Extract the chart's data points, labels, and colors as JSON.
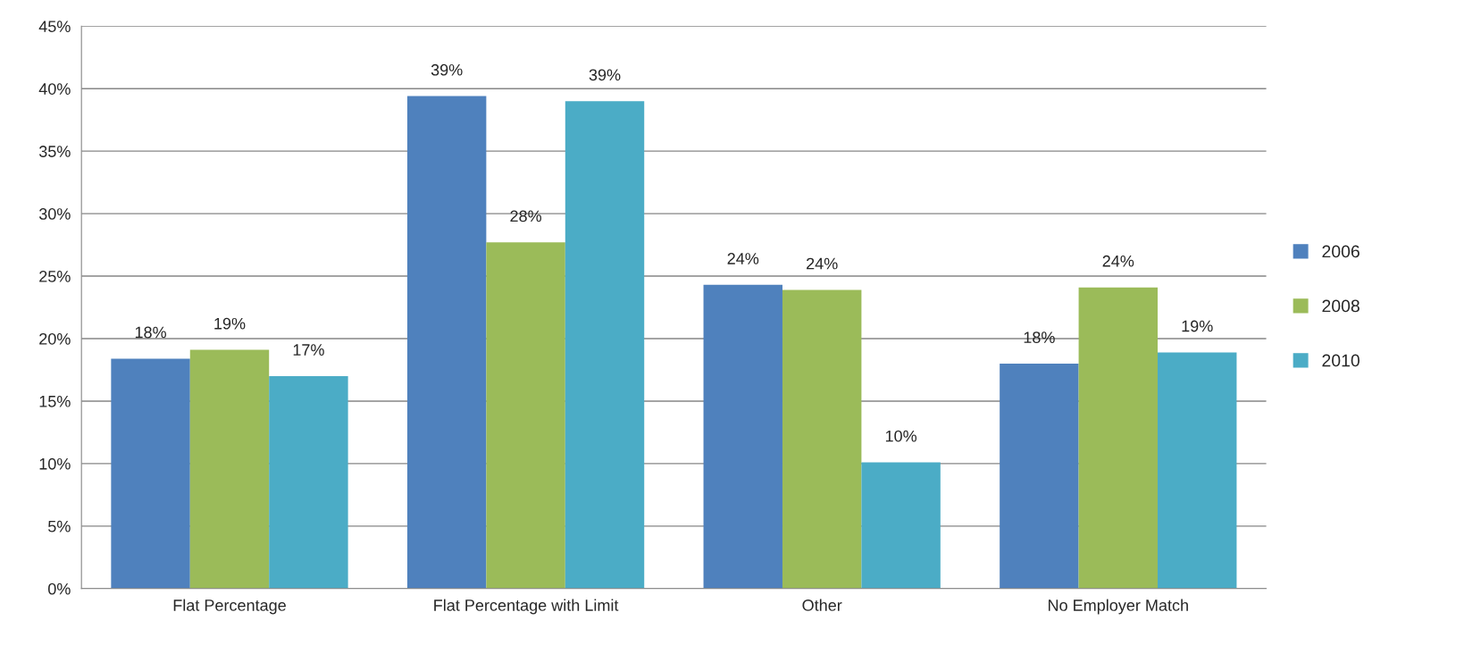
{
  "chart_data": {
    "type": "bar",
    "categories": [
      "Flat Percentage",
      "Flat Percentage with Limit",
      "Other",
      "No Employer Match"
    ],
    "series": [
      {
        "name": "2006",
        "color": "#4f81bd",
        "values": [
          18.4,
          39.4,
          24.3,
          18.0
        ],
        "value_labels": [
          "18%",
          "39%",
          "24%",
          "18%"
        ]
      },
      {
        "name": "2008",
        "color": "#9bbb59",
        "values": [
          19.1,
          27.7,
          23.9,
          24.1
        ],
        "value_labels": [
          "19%",
          "28%",
          "24%",
          "24%"
        ]
      },
      {
        "name": "2010",
        "color": "#4bacc6",
        "values": [
          17.0,
          39.0,
          10.1,
          18.9
        ],
        "value_labels": [
          "17%",
          "39%",
          "10%",
          "19%"
        ]
      }
    ],
    "ylim": [
      0,
      45
    ],
    "yticks": [
      {
        "value": 0,
        "label": "0%"
      },
      {
        "value": 5,
        "label": "5%"
      },
      {
        "value": 10,
        "label": "10%"
      },
      {
        "value": 15,
        "label": "15%"
      },
      {
        "value": 20,
        "label": "20%"
      },
      {
        "value": 25,
        "label": "25%"
      },
      {
        "value": 30,
        "label": "30%"
      },
      {
        "value": 35,
        "label": "35%"
      },
      {
        "value": 40,
        "label": "40%"
      },
      {
        "value": 45,
        "label": "45%"
      }
    ],
    "grid": "y",
    "legend": "right"
  }
}
